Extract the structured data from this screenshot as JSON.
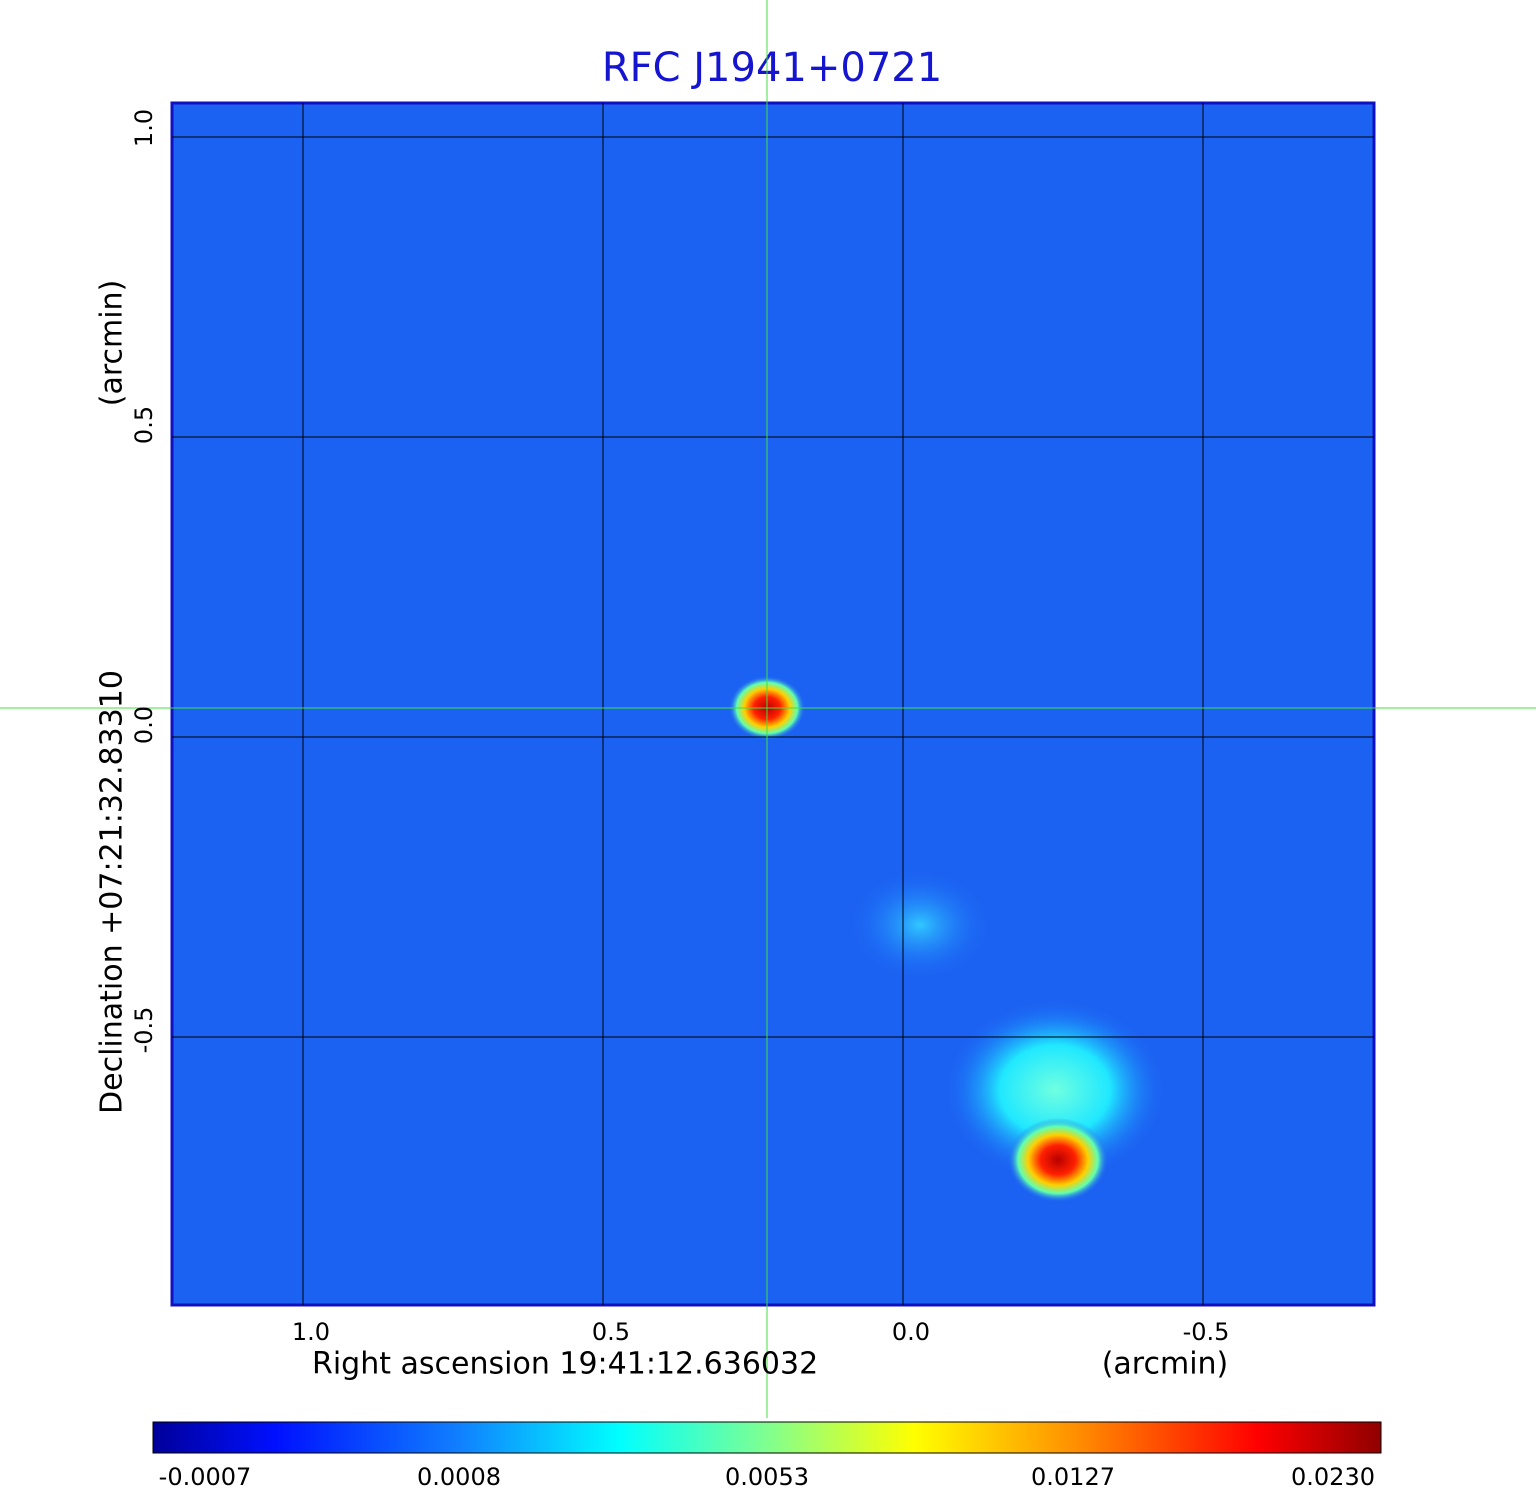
{
  "title": "RFC J1941+0721",
  "x_axis": {
    "label": "Right ascension  19:41:12.636032",
    "unit": "(arcmin)",
    "ticks": [
      "1.0",
      "0.5",
      "0.0",
      "-0.5"
    ]
  },
  "y_axis": {
    "label": "Declination  +07:21:32.83310",
    "unit": "(arcmin)",
    "ticks": [
      "1.0",
      "0.5",
      "0.0",
      "-0.5"
    ]
  },
  "colorbar": {
    "ticks": [
      "-0.0007",
      "0.0008",
      "0.0053",
      "0.0127",
      "0.0230"
    ]
  }
}
